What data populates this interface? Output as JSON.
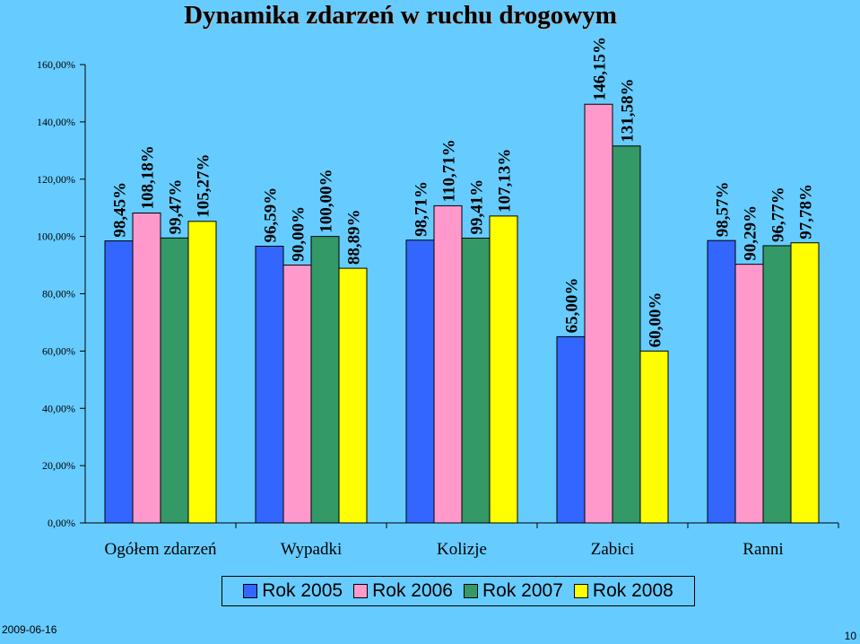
{
  "title": "Dynamika zdarzeń w ruchu drogowym",
  "footer": {
    "date": "2009-06-16",
    "page": "10"
  },
  "colors": {
    "background": "#66ccff",
    "series": [
      "#3366ff",
      "#ff99cc",
      "#339966",
      "#ffff00"
    ]
  },
  "chart_data": {
    "type": "bar",
    "title": "Dynamika zdarzeń w ruchu drogowym",
    "xlabel": "",
    "ylabel": "",
    "ylim": [
      0,
      160
    ],
    "yticks": [
      "0,00%",
      "20,00%",
      "40,00%",
      "60,00%",
      "80,00%",
      "100,00%",
      "120,00%",
      "140,00%",
      "160,00%"
    ],
    "categories": [
      "Ogółem zdarzeń",
      "Wypadki",
      "Kolizje",
      "Zabici",
      "Ranni"
    ],
    "series": [
      {
        "name": "Rok 2005",
        "values": [
          98.45,
          96.59,
          98.71,
          65.0,
          98.57
        ],
        "labels": [
          "98,45%",
          "96,59%",
          "98,71%",
          "65,00%",
          "98,57%"
        ]
      },
      {
        "name": "Rok 2006",
        "values": [
          108.18,
          90.0,
          110.71,
          146.15,
          90.29
        ],
        "labels": [
          "108,18%",
          "90,00%",
          "110,71%",
          "146,15%",
          "90,29%"
        ]
      },
      {
        "name": "Rok 2007",
        "values": [
          99.47,
          100.0,
          99.41,
          131.58,
          96.77
        ],
        "labels": [
          "99,47%",
          "100,00%",
          "99,41%",
          "131,58%",
          "96,77%"
        ]
      },
      {
        "name": "Rok 2008",
        "values": [
          105.27,
          88.89,
          107.13,
          60.0,
          97.78
        ],
        "labels": [
          "105,27%",
          "88,89%",
          "107,13%",
          "60,00%",
          "97,78%"
        ]
      }
    ],
    "grid": false,
    "legend": "bottom"
  }
}
